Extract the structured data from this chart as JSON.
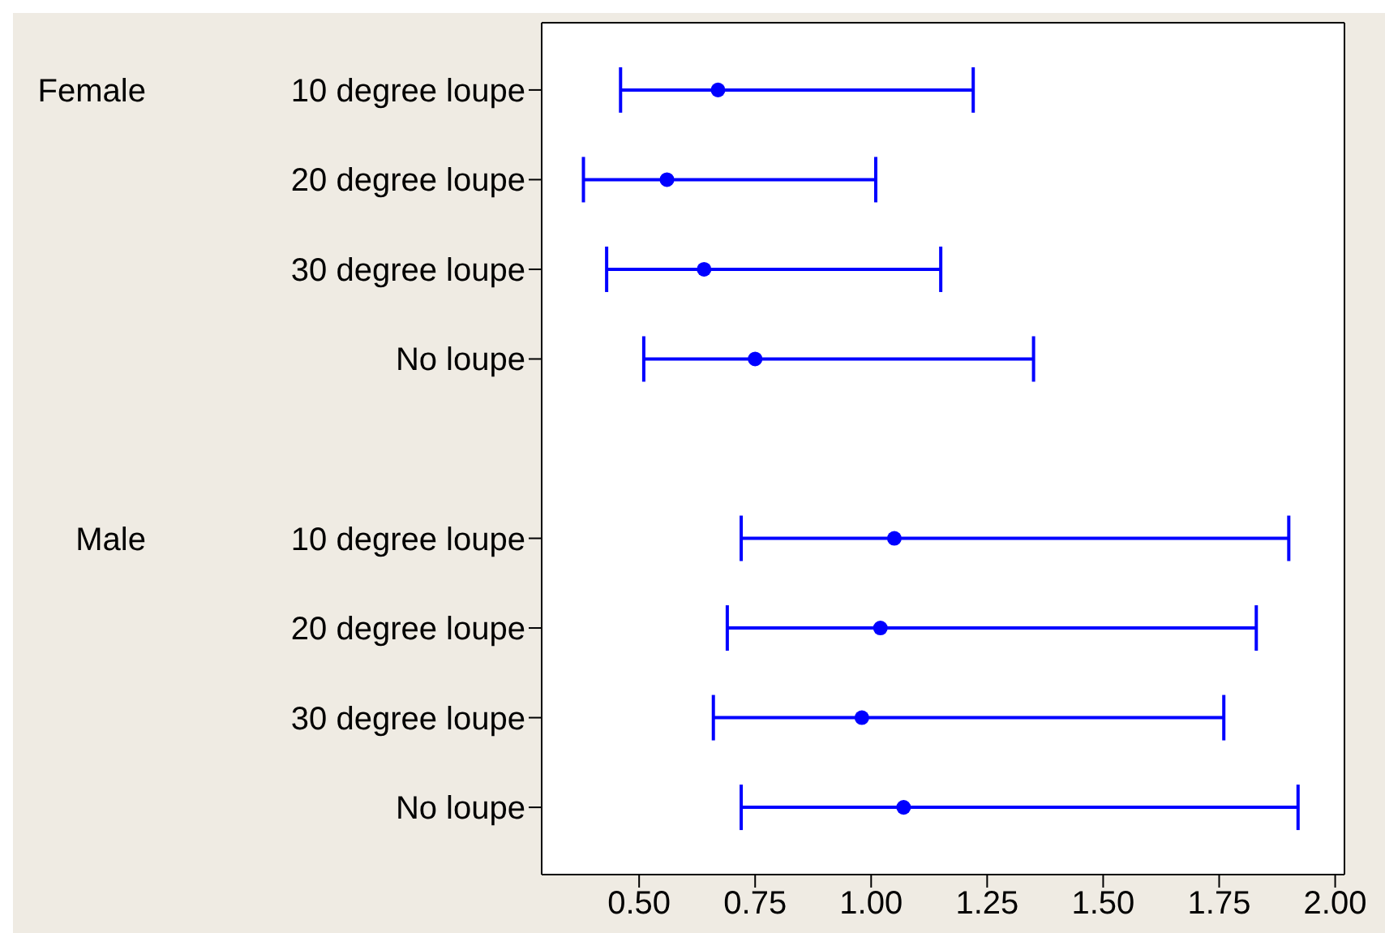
{
  "chart_data": {
    "type": "scatter",
    "orientation": "horizontal",
    "categories": [
      "10 degree loupe",
      "20 degree loupe",
      "30 degree loupe",
      "No loupe",
      null,
      "10 degree loupe",
      "20 degree loupe",
      "30 degree loupe",
      "No loupe"
    ],
    "values": [
      0.67,
      0.56,
      0.64,
      0.75,
      null,
      1.05,
      1.02,
      0.98,
      1.07
    ],
    "errors": [
      [
        0.46,
        1.22
      ],
      [
        0.38,
        1.01
      ],
      [
        0.43,
        1.15
      ],
      [
        0.51,
        1.35
      ],
      null,
      [
        0.72,
        1.9
      ],
      [
        0.69,
        1.83
      ],
      [
        0.66,
        1.76
      ],
      [
        0.72,
        1.92
      ]
    ],
    "color": "#0000ff",
    "marker": "circle",
    "xlim": [
      0.29,
      2.02
    ],
    "xticks": [
      {
        "value": 0.5,
        "label": "0.50"
      },
      {
        "value": 0.75,
        "label": "0.75"
      },
      {
        "value": 1,
        "label": "1.00"
      },
      {
        "value": 1.25,
        "label": "1.25"
      },
      {
        "value": 1.5,
        "label": "1.50"
      },
      {
        "value": 1.75,
        "label": "1.75"
      },
      {
        "value": 2,
        "label": "2.00"
      }
    ],
    "annotations": [
      "Female",
      "Male"
    ]
  }
}
